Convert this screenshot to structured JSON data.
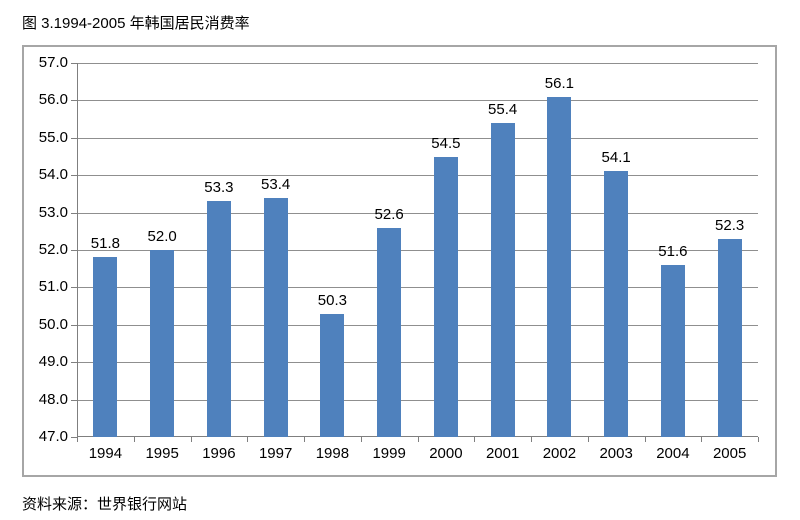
{
  "page": {
    "title": "图 3.1994-2005 年韩国居民消费率",
    "source": "资料来源：世界银行网站"
  },
  "chart_data": {
    "type": "bar",
    "title": "图 3.1994-2005 年韩国居民消费率",
    "categories": [
      "1994",
      "1995",
      "1996",
      "1997",
      "1998",
      "1999",
      "2000",
      "2001",
      "2002",
      "2003",
      "2004",
      "2005"
    ],
    "values": [
      51.8,
      52.0,
      53.3,
      53.4,
      50.3,
      52.6,
      54.5,
      55.4,
      56.1,
      54.1,
      51.6,
      52.3
    ],
    "xlabel": "",
    "ylabel": "",
    "ylim": [
      47.0,
      57.0
    ],
    "ytick_step": 1.0,
    "ytick_decimals": 1,
    "grid": true,
    "legend": "none",
    "data_labels": true,
    "bar_color": "#4f81bd",
    "gridline_color": "#8f8f8f",
    "axis_color": "#7f7f7f",
    "frame_border_color": "#a6a6a6",
    "text_color": "#000000"
  }
}
